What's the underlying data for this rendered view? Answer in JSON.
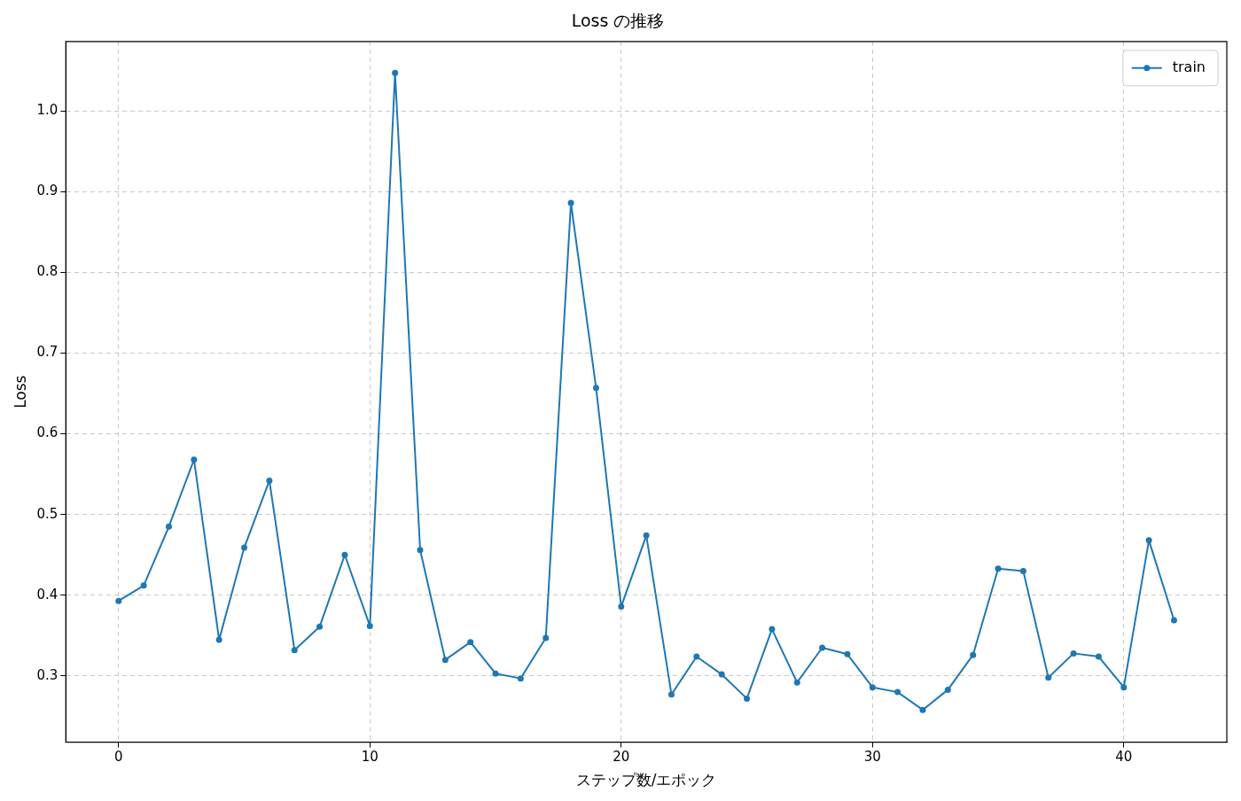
{
  "chart_data": {
    "type": "line",
    "title": "Loss の推移",
    "xlabel": "ステップ数/エポック",
    "ylabel": "Loss",
    "x": [
      0,
      1,
      2,
      3,
      4,
      5,
      6,
      7,
      8,
      9,
      10,
      11,
      12,
      13,
      14,
      15,
      16,
      17,
      18,
      19,
      20,
      21,
      22,
      23,
      24,
      25,
      26,
      27,
      28,
      29,
      30,
      31,
      32,
      33,
      34,
      35,
      36,
      37,
      38,
      39,
      40,
      41,
      42
    ],
    "series": [
      {
        "name": "train",
        "color": "#1f77b4",
        "values": [
          0.393,
          0.412,
          0.485,
          0.568,
          0.345,
          0.459,
          0.542,
          0.332,
          0.361,
          0.45,
          0.362,
          1.047,
          0.456,
          0.32,
          0.342,
          0.303,
          0.297,
          0.347,
          0.886,
          0.657,
          0.386,
          0.474,
          0.277,
          0.324,
          0.302,
          0.272,
          0.358,
          0.292,
          0.335,
          0.327,
          0.286,
          0.28,
          0.258,
          0.283,
          0.326,
          0.433,
          0.43,
          0.298,
          0.328,
          0.324,
          0.286,
          0.468,
          0.369
        ]
      }
    ],
    "xlim": [
      -2.1,
      44.1
    ],
    "xticks": [
      0,
      10,
      20,
      30,
      40
    ],
    "ylim": [
      0.218,
      1.086
    ],
    "yticks": [
      {
        "value": 0.3,
        "label": "0.3"
      },
      {
        "value": 0.4,
        "label": "0.4"
      },
      {
        "value": 0.5,
        "label": "0.5"
      },
      {
        "value": 0.6,
        "label": "0.6"
      },
      {
        "value": 0.7,
        "label": "0.7"
      },
      {
        "value": 0.8,
        "label": "0.8"
      },
      {
        "value": 0.9,
        "label": "0.9"
      },
      {
        "value": 1.0,
        "label": "1.0"
      }
    ],
    "grid": true,
    "legend": "top right",
    "marker": "circle",
    "line_style": "solid"
  }
}
